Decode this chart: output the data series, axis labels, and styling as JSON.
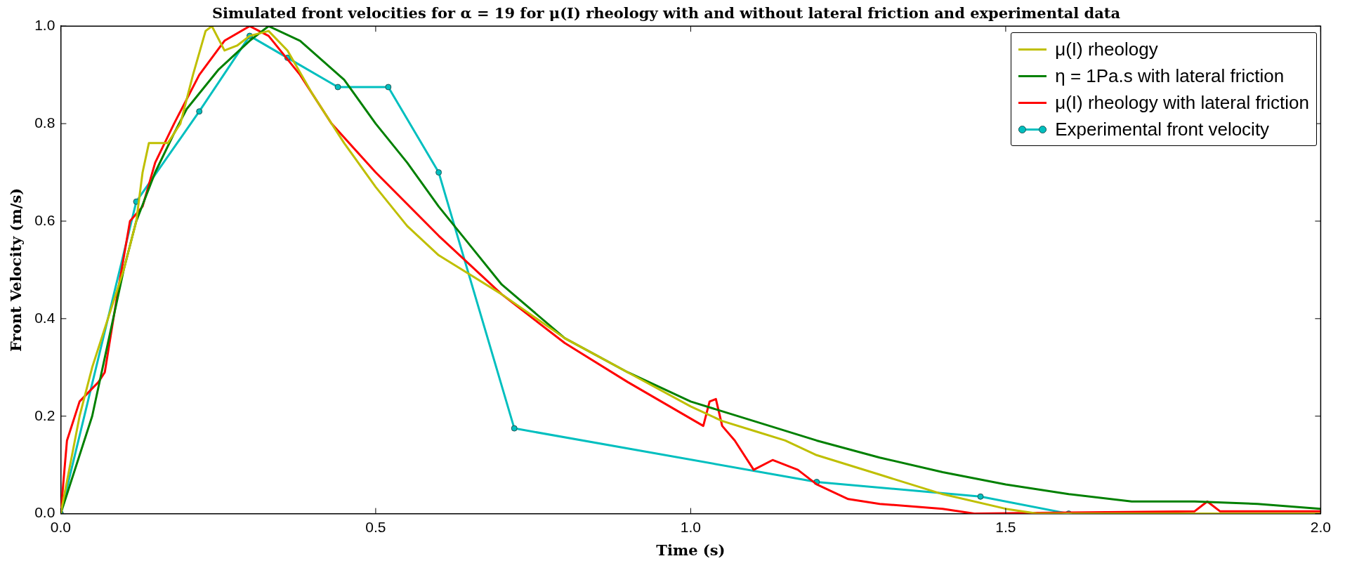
{
  "chart_data": {
    "type": "line",
    "title": "Simulated front velocities for α = 19 for μ(I) rheology with and without lateral friction and experimental data",
    "xlabel": "Time (s)",
    "ylabel": "Front Velocity (m/s)",
    "xlim": [
      0,
      2
    ],
    "ylim": [
      0,
      1
    ],
    "xticks": [
      {
        "value": 0,
        "label": "0.0"
      },
      {
        "value": 0.5,
        "label": "0.5"
      },
      {
        "value": 1,
        "label": "1.0"
      },
      {
        "value": 1.5,
        "label": "1.5"
      },
      {
        "value": 2,
        "label": "2.0"
      }
    ],
    "yticks": [
      {
        "value": 0,
        "label": "0.0"
      },
      {
        "value": 0.2,
        "label": "0.2"
      },
      {
        "value": 0.4,
        "label": "0.4"
      },
      {
        "value": 0.6,
        "label": "0.6"
      },
      {
        "value": 0.8,
        "label": "0.8"
      },
      {
        "value": 1,
        "label": "1.0"
      }
    ],
    "grid": false,
    "legend": "top right",
    "line_style": "solid",
    "series": [
      {
        "name": "μ(I) rheology",
        "color": "#bfbf00",
        "marker": "none",
        "x": [
          0,
          0.03,
          0.05,
          0.08,
          0.1,
          0.12,
          0.13,
          0.14,
          0.17,
          0.19,
          0.21,
          0.23,
          0.24,
          0.26,
          0.28,
          0.3,
          0.33,
          0.36,
          0.4,
          0.45,
          0.5,
          0.55,
          0.6,
          0.65,
          0.7,
          0.8,
          0.9,
          1,
          1.05,
          1.1,
          1.15,
          1.2,
          1.3,
          1.4,
          1.5,
          1.55,
          2
        ],
        "values": [
          0,
          0.2,
          0.3,
          0.42,
          0.5,
          0.6,
          0.7,
          0.76,
          0.76,
          0.8,
          0.9,
          0.99,
          1,
          0.95,
          0.96,
          0.98,
          0.99,
          0.95,
          0.86,
          0.76,
          0.67,
          0.59,
          0.53,
          0.49,
          0.45,
          0.36,
          0.29,
          0.22,
          0.19,
          0.17,
          0.15,
          0.12,
          0.08,
          0.04,
          0.01,
          0,
          0
        ]
      },
      {
        "name": "η = 1Pa.s with lateral friction",
        "color": "#008000",
        "marker": "none",
        "x": [
          0,
          0.05,
          0.08,
          0.1,
          0.12,
          0.15,
          0.18,
          0.2,
          0.25,
          0.3,
          0.33,
          0.38,
          0.45,
          0.5,
          0.55,
          0.6,
          0.65,
          0.7,
          0.8,
          0.9,
          1,
          1.1,
          1.2,
          1.3,
          1.4,
          1.5,
          1.6,
          1.7,
          1.8,
          1.9,
          2
        ],
        "values": [
          0,
          0.2,
          0.38,
          0.5,
          0.6,
          0.7,
          0.78,
          0.83,
          0.91,
          0.97,
          1,
          0.97,
          0.89,
          0.8,
          0.72,
          0.63,
          0.55,
          0.47,
          0.36,
          0.29,
          0.23,
          0.19,
          0.15,
          0.115,
          0.085,
          0.06,
          0.04,
          0.025,
          0.025,
          0.02,
          0.01
        ]
      },
      {
        "name": "μ(I) rheology with lateral friction",
        "color": "#ff0000",
        "marker": "none",
        "x": [
          0,
          0.01,
          0.03,
          0.06,
          0.07,
          0.09,
          0.11,
          0.13,
          0.15,
          0.18,
          0.22,
          0.26,
          0.3,
          0.33,
          0.38,
          0.43,
          0.5,
          0.6,
          0.7,
          0.8,
          0.9,
          1.02,
          1.03,
          1.04,
          1.05,
          1.07,
          1.1,
          1.13,
          1.17,
          1.2,
          1.25,
          1.3,
          1.4,
          1.45,
          1.8,
          1.82,
          1.84,
          2
        ],
        "values": [
          0,
          0.15,
          0.23,
          0.27,
          0.29,
          0.45,
          0.6,
          0.63,
          0.72,
          0.8,
          0.9,
          0.97,
          1,
          0.98,
          0.9,
          0.8,
          0.7,
          0.57,
          0.45,
          0.35,
          0.27,
          0.18,
          0.23,
          0.235,
          0.18,
          0.15,
          0.09,
          0.11,
          0.09,
          0.06,
          0.03,
          0.02,
          0.01,
          0,
          0.005,
          0.025,
          0.005,
          0.005
        ]
      },
      {
        "name": "Experimental front velocity",
        "color": "#00bfbf",
        "marker": "circle",
        "x": [
          0,
          0.12,
          0.22,
          0.3,
          0.36,
          0.44,
          0.52,
          0.6,
          0.72,
          1.2,
          1.46,
          1.6
        ],
        "values": [
          0,
          0.64,
          0.825,
          0.98,
          0.935,
          0.875,
          0.875,
          0.7,
          0.175,
          0.065,
          0.035,
          0
        ]
      }
    ]
  }
}
